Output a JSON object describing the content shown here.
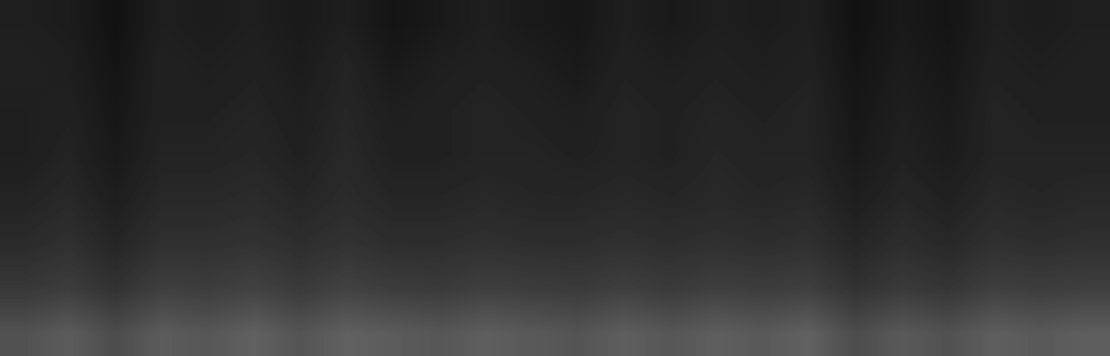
{
  "chart_data": {
    "type": "heatmap",
    "tick_labels": false,
    "color": "gray",
    "value_range": [
      0,
      1
    ],
    "cells": [
      [
        0.12,
        0.11,
        0.07,
        0.12,
        0.11,
        0.12,
        0.1,
        0.12,
        0.08,
        0.1,
        0.12,
        0.1,
        0.09,
        0.12,
        0.1,
        0.12,
        0.11,
        0.12,
        0.07,
        0.1,
        0.08,
        0.12,
        0.11,
        0.12
      ],
      [
        0.13,
        0.12,
        0.08,
        0.13,
        0.12,
        0.13,
        0.11,
        0.14,
        0.1,
        0.12,
        0.13,
        0.12,
        0.1,
        0.13,
        0.12,
        0.13,
        0.12,
        0.13,
        0.08,
        0.11,
        0.09,
        0.13,
        0.12,
        0.13
      ],
      [
        0.12,
        0.13,
        0.09,
        0.13,
        0.13,
        0.14,
        0.12,
        0.15,
        0.12,
        0.13,
        0.14,
        0.13,
        0.12,
        0.14,
        0.13,
        0.14,
        0.13,
        0.14,
        0.09,
        0.12,
        0.1,
        0.14,
        0.13,
        0.13
      ],
      [
        0.12,
        0.14,
        0.1,
        0.14,
        0.14,
        0.15,
        0.13,
        0.16,
        0.13,
        0.13,
        0.14,
        0.14,
        0.13,
        0.14,
        0.13,
        0.15,
        0.14,
        0.14,
        0.1,
        0.13,
        0.11,
        0.14,
        0.14,
        0.14
      ],
      [
        0.14,
        0.16,
        0.12,
        0.16,
        0.16,
        0.17,
        0.15,
        0.17,
        0.15,
        0.15,
        0.16,
        0.15,
        0.15,
        0.16,
        0.15,
        0.16,
        0.15,
        0.16,
        0.12,
        0.15,
        0.13,
        0.16,
        0.15,
        0.16
      ],
      [
        0.17,
        0.19,
        0.15,
        0.19,
        0.19,
        0.2,
        0.18,
        0.2,
        0.18,
        0.18,
        0.19,
        0.18,
        0.18,
        0.19,
        0.18,
        0.19,
        0.18,
        0.19,
        0.15,
        0.18,
        0.16,
        0.19,
        0.18,
        0.19
      ],
      [
        0.22,
        0.24,
        0.2,
        0.25,
        0.24,
        0.26,
        0.23,
        0.26,
        0.24,
        0.23,
        0.25,
        0.24,
        0.23,
        0.25,
        0.23,
        0.25,
        0.24,
        0.25,
        0.2,
        0.23,
        0.21,
        0.25,
        0.24,
        0.25
      ],
      [
        0.32,
        0.36,
        0.3,
        0.36,
        0.34,
        0.38,
        0.33,
        0.38,
        0.36,
        0.34,
        0.37,
        0.35,
        0.33,
        0.37,
        0.34,
        0.37,
        0.35,
        0.38,
        0.3,
        0.35,
        0.32,
        0.37,
        0.35,
        0.37
      ]
    ]
  }
}
